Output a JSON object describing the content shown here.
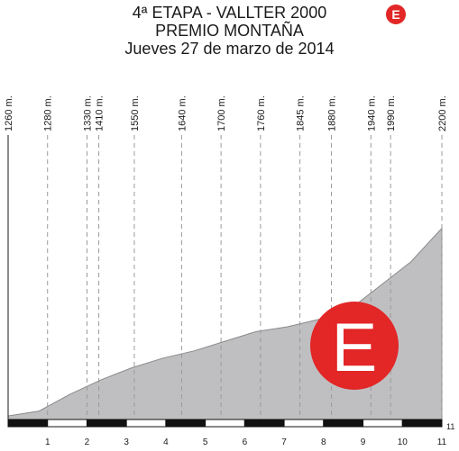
{
  "header": {
    "title": "4ª ETAPA - VALLTER 2000",
    "subtitle": "PREMIO MONTAÑA",
    "date": "Jueves 27 de marzo de 2014",
    "badge_letter": "E"
  },
  "colors": {
    "profile_fill": "#bfbfc2",
    "profile_stroke": "#8a8a8a",
    "badge": "#e32626",
    "text": "#1a1a1a",
    "guide_line": "#9a9a9a"
  },
  "chart_data": {
    "type": "area",
    "title": "",
    "xlabel": "",
    "ylabel": "",
    "xlim": [
      0,
      11
    ],
    "km_ticks": [
      "1",
      "2",
      "3",
      "4",
      "5",
      "6",
      "7",
      "8",
      "9",
      "10",
      "11"
    ],
    "end_km_label": "11",
    "points": [
      {
        "x": 0,
        "y": 1260,
        "label": "1260 m."
      },
      {
        "x": 1,
        "y": 1280,
        "label": "1280 m."
      },
      {
        "x": 2,
        "y": 1330,
        "label": "1330 m."
      },
      {
        "x": 2.3,
        "y": 1410,
        "label": "1410 m."
      },
      {
        "x": 3.2,
        "y": 1550,
        "label": "1550 m."
      },
      {
        "x": 4.4,
        "y": 1640,
        "label": "1640 m."
      },
      {
        "x": 5.4,
        "y": 1700,
        "label": "1700 m."
      },
      {
        "x": 6.4,
        "y": 1760,
        "label": "1760 m."
      },
      {
        "x": 7.4,
        "y": 1845,
        "label": "1845 m."
      },
      {
        "x": 8.2,
        "y": 1880,
        "label": "1880 m."
      },
      {
        "x": 9.2,
        "y": 1940,
        "label": "1940 m."
      },
      {
        "x": 9.7,
        "y": 1990,
        "label": "1990 m."
      },
      {
        "x": 11,
        "y": 2200,
        "label": "2200 m."
      }
    ],
    "profile_y": [
      1260,
      1280,
      1350,
      1410,
      1460,
      1500,
      1530,
      1570,
      1610,
      1630,
      1660,
      1700,
      1800,
      1900,
      2040
    ]
  }
}
